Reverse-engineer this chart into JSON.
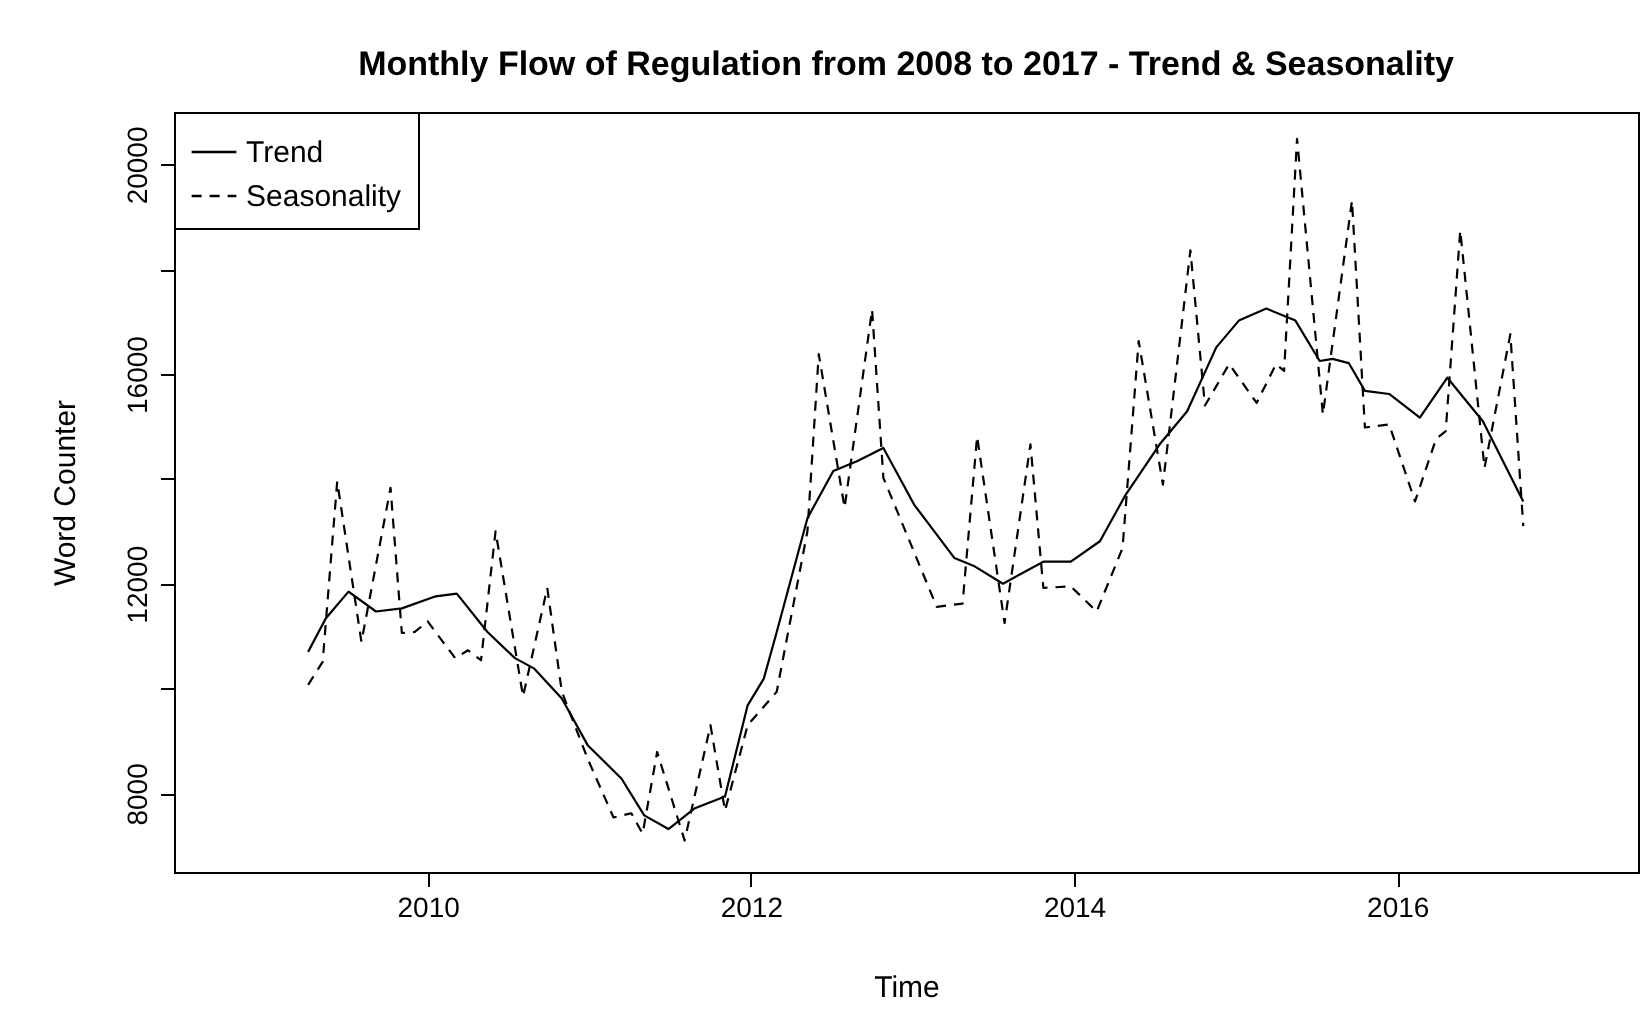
{
  "chart_data": {
    "type": "line",
    "title": "Monthly Flow of Regulation from 2008 to 2017 - Trend & Seasonality",
    "xlabel": "Time",
    "ylabel": "Word Counter",
    "xlim": [
      2008.43,
      2017.49
    ],
    "xticks": [
      2010,
      2012,
      2014,
      2016
    ],
    "ylim": [
      6500,
      21000
    ],
    "yticks": [
      8000,
      {
        "value": 10000,
        "label": null
      },
      12000,
      {
        "value": 14000,
        "label": null
      },
      16000,
      {
        "value": 18000,
        "label": null
      },
      20000
    ],
    "grid": false,
    "legend": "top left",
    "marker": "none",
    "series": [
      {
        "name": "Trend",
        "color": "#000000",
        "line_style": "solid",
        "x": [
          2009.26,
          2009.37,
          2009.51,
          2009.68,
          2009.84,
          2010.05,
          2010.18,
          2010.37,
          2010.54,
          2010.66,
          2010.83,
          2010.99,
          2011.2,
          2011.34,
          2011.49,
          2011.65,
          2011.84,
          2011.98,
          2012.08,
          2012.16,
          2012.35,
          2012.51,
          2012.66,
          2012.82,
          2013.01,
          2013.26,
          2013.38,
          2013.56,
          2013.81,
          2013.98,
          2014.16,
          2014.32,
          2014.53,
          2014.7,
          2014.88,
          2015.02,
          2015.19,
          2015.37,
          2015.52,
          2015.6,
          2015.7,
          2015.8,
          2015.95,
          2016.14,
          2016.31,
          2016.53,
          2016.78
        ],
        "values": [
          10700,
          11340,
          11850,
          11470,
          11530,
          11760,
          11810,
          11080,
          10580,
          10380,
          9810,
          8920,
          8280,
          7580,
          7320,
          7710,
          7940,
          9680,
          10190,
          11080,
          13250,
          14150,
          14340,
          14590,
          13510,
          12490,
          12340,
          12000,
          12420,
          12420,
          12810,
          13700,
          14660,
          15290,
          16510,
          17020,
          17250,
          17020,
          16250,
          16290,
          16210,
          15680,
          15620,
          15170,
          15930,
          15100,
          13570
        ]
      },
      {
        "name": "Seasonality",
        "color": "#000000",
        "line_style": "dashed",
        "x": [
          2009.26,
          2009.35,
          2009.44,
          2009.59,
          2009.77,
          2009.84,
          2009.92,
          2010.0,
          2010.17,
          2010.25,
          2010.33,
          2010.42,
          2010.59,
          2010.74,
          2010.83,
          2010.99,
          2011.15,
          2011.26,
          2011.33,
          2011.42,
          2011.59,
          2011.75,
          2011.84,
          2011.98,
          2012.16,
          2012.35,
          2012.42,
          2012.58,
          2012.75,
          2012.82,
          2013.15,
          2013.31,
          2013.4,
          2013.57,
          2013.73,
          2013.81,
          2013.98,
          2014.14,
          2014.3,
          2014.4,
          2014.55,
          2014.72,
          2014.81,
          2014.96,
          2015.13,
          2015.25,
          2015.3,
          2015.38,
          2015.54,
          2015.72,
          2015.8,
          2015.95,
          2016.11,
          2016.24,
          2016.3,
          2016.39,
          2016.54,
          2016.7,
          2016.78
        ],
        "values": [
          10070,
          10510,
          13950,
          10890,
          13830,
          11060,
          11080,
          11280,
          10580,
          10730,
          10540,
          13000,
          9850,
          11920,
          9940,
          8660,
          7540,
          7620,
          7230,
          8790,
          7100,
          9300,
          7670,
          9300,
          9940,
          13000,
          16380,
          13450,
          17230,
          14020,
          11560,
          11620,
          14810,
          11250,
          14660,
          11920,
          11950,
          11470,
          12680,
          16630,
          13890,
          18360,
          15400,
          16190,
          15450,
          16190,
          16060,
          20490,
          15230,
          19310,
          14980,
          15040,
          13570,
          14760,
          14910,
          18740,
          14210,
          16760,
          13100
        ]
      }
    ]
  }
}
